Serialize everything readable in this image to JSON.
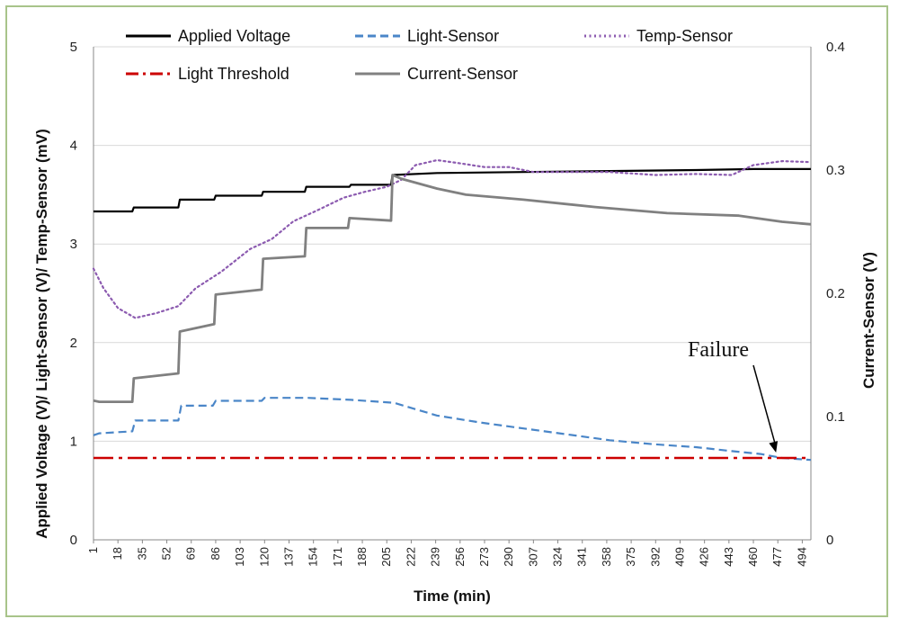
{
  "chart_data": {
    "type": "line",
    "xlabel": "Time (min)",
    "ylabel_left": "Applied Voltage (V)/ Light-Sensor (V)/ Temp-Sensor (mV)",
    "ylabel_right": "Current-Sensor (V)",
    "xlim": [
      1,
      500
    ],
    "ylim_left": [
      0,
      5
    ],
    "ylim_right": [
      0,
      0.4
    ],
    "x_ticks": [
      1,
      18,
      35,
      52,
      69,
      86,
      103,
      120,
      137,
      154,
      171,
      188,
      205,
      222,
      239,
      256,
      273,
      290,
      307,
      324,
      341,
      358,
      375,
      392,
      409,
      426,
      443,
      460,
      477,
      494
    ],
    "y_ticks_left": [
      0,
      1,
      2,
      3,
      4,
      5
    ],
    "y_ticks_right": [
      0,
      0.1,
      0.2,
      0.3,
      0.4
    ],
    "y_ticks_right_labels": [
      "0",
      "0.1",
      "0.2",
      "0.3",
      "0.4"
    ],
    "legend": [
      {
        "name": "Applied Voltage",
        "color": "#000000",
        "dash": "solid"
      },
      {
        "name": "Light-Sensor",
        "color": "#4a86c8",
        "dash": "dash"
      },
      {
        "name": "Temp-Sensor",
        "color": "#8c5bb0",
        "dash": "dot"
      },
      {
        "name": "Light Threshold",
        "color": "#cc0000",
        "dash": "dashdot"
      },
      {
        "name": "Current-Sensor",
        "color": "#808080",
        "dash": "solid"
      }
    ],
    "series": [
      {
        "name": "Applied Voltage",
        "axis": "left",
        "color": "#000000",
        "dash": "solid",
        "width": 2.2,
        "points": [
          [
            1,
            3.33
          ],
          [
            28,
            3.33
          ],
          [
            29,
            3.37
          ],
          [
            60,
            3.37
          ],
          [
            61,
            3.45
          ],
          [
            85,
            3.45
          ],
          [
            86,
            3.49
          ],
          [
            118,
            3.49
          ],
          [
            119,
            3.53
          ],
          [
            148,
            3.53
          ],
          [
            149,
            3.58
          ],
          [
            179,
            3.58
          ],
          [
            180,
            3.6
          ],
          [
            208,
            3.6
          ],
          [
            209,
            3.7
          ],
          [
            240,
            3.72
          ],
          [
            300,
            3.73
          ],
          [
            360,
            3.74
          ],
          [
            420,
            3.75
          ],
          [
            460,
            3.76
          ],
          [
            500,
            3.76
          ]
        ]
      },
      {
        "name": "Light-Sensor",
        "axis": "left",
        "color": "#4a86c8",
        "dash": "dash",
        "width": 2.2,
        "points": [
          [
            1,
            1.06
          ],
          [
            5,
            1.08
          ],
          [
            28,
            1.1
          ],
          [
            30,
            1.21
          ],
          [
            60,
            1.21
          ],
          [
            62,
            1.36
          ],
          [
            84,
            1.36
          ],
          [
            86,
            1.41
          ],
          [
            118,
            1.41
          ],
          [
            120,
            1.44
          ],
          [
            150,
            1.44
          ],
          [
            180,
            1.42
          ],
          [
            210,
            1.39
          ],
          [
            240,
            1.26
          ],
          [
            270,
            1.19
          ],
          [
            300,
            1.13
          ],
          [
            330,
            1.07
          ],
          [
            360,
            1.01
          ],
          [
            390,
            0.97
          ],
          [
            420,
            0.94
          ],
          [
            445,
            0.9
          ],
          [
            465,
            0.87
          ],
          [
            480,
            0.83
          ],
          [
            500,
            0.81
          ]
        ]
      },
      {
        "name": "Temp-Sensor",
        "axis": "left",
        "color": "#8c5bb0",
        "dash": "dot",
        "width": 2.2,
        "points": [
          [
            1,
            2.75
          ],
          [
            8,
            2.55
          ],
          [
            18,
            2.35
          ],
          [
            30,
            2.25
          ],
          [
            45,
            2.3
          ],
          [
            60,
            2.37
          ],
          [
            72,
            2.55
          ],
          [
            90,
            2.72
          ],
          [
            110,
            2.95
          ],
          [
            125,
            3.05
          ],
          [
            140,
            3.23
          ],
          [
            158,
            3.35
          ],
          [
            175,
            3.47
          ],
          [
            190,
            3.53
          ],
          [
            205,
            3.58
          ],
          [
            215,
            3.65
          ],
          [
            225,
            3.8
          ],
          [
            240,
            3.85
          ],
          [
            255,
            3.82
          ],
          [
            273,
            3.78
          ],
          [
            290,
            3.78
          ],
          [
            307,
            3.73
          ],
          [
            330,
            3.73
          ],
          [
            360,
            3.73
          ],
          [
            392,
            3.7
          ],
          [
            420,
            3.71
          ],
          [
            445,
            3.7
          ],
          [
            460,
            3.8
          ],
          [
            480,
            3.84
          ],
          [
            500,
            3.83
          ]
        ]
      },
      {
        "name": "Light Threshold",
        "axis": "left",
        "color": "#cc0000",
        "dash": "dashdot",
        "width": 2.4,
        "points": [
          [
            1,
            0.83
          ],
          [
            500,
            0.83
          ]
        ]
      },
      {
        "name": "Current-Sensor",
        "axis": "right",
        "color": "#808080",
        "dash": "solid",
        "width": 2.8,
        "points": [
          [
            1,
            0.113
          ],
          [
            5,
            0.112
          ],
          [
            28,
            0.112
          ],
          [
            29,
            0.131
          ],
          [
            60,
            0.135
          ],
          [
            61,
            0.169
          ],
          [
            85,
            0.175
          ],
          [
            86,
            0.199
          ],
          [
            118,
            0.203
          ],
          [
            119,
            0.228
          ],
          [
            148,
            0.23
          ],
          [
            149,
            0.253
          ],
          [
            178,
            0.253
          ],
          [
            179,
            0.261
          ],
          [
            208,
            0.259
          ],
          [
            209,
            0.296
          ],
          [
            215,
            0.293
          ],
          [
            240,
            0.285
          ],
          [
            260,
            0.28
          ],
          [
            300,
            0.276
          ],
          [
            350,
            0.27
          ],
          [
            400,
            0.265
          ],
          [
            450,
            0.263
          ],
          [
            480,
            0.258
          ],
          [
            500,
            0.256
          ]
        ]
      }
    ],
    "annotations": [
      {
        "text": "Failure",
        "x": 477,
        "y": 0.83
      }
    ]
  }
}
